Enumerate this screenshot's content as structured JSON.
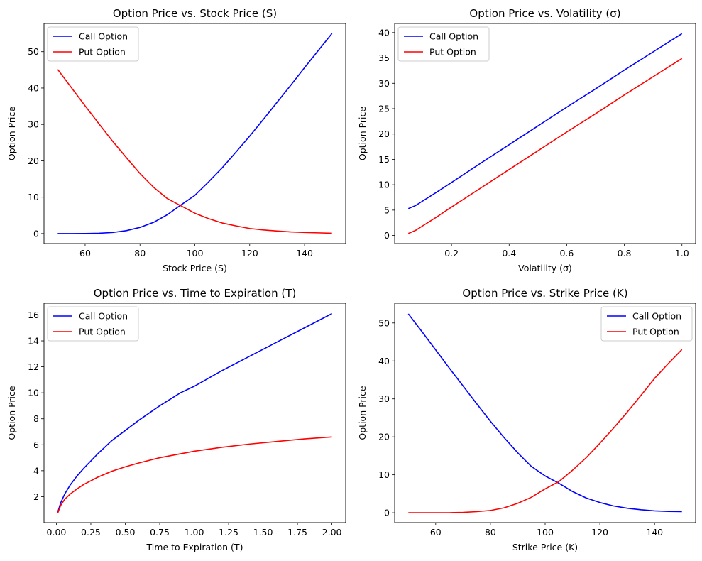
{
  "chart_data": [
    {
      "type": "line",
      "title": "Option Price vs. Stock Price (S)",
      "xlabel": "Stock Price (S)",
      "ylabel": "Option Price",
      "xlim": [
        45,
        155
      ],
      "ylim": [
        -2.75,
        57.75
      ],
      "xticks": [
        60,
        80,
        100,
        120,
        140
      ],
      "yticks": [
        0,
        10,
        20,
        30,
        40,
        50
      ],
      "legend_position": "top-left",
      "series": [
        {
          "name": "Call Option",
          "color": "#0000ff",
          "x": [
            50,
            55,
            60,
            65,
            70,
            75,
            80,
            85,
            90,
            95,
            100,
            105,
            110,
            115,
            120,
            125,
            130,
            135,
            140,
            145,
            150
          ],
          "y": [
            0.0,
            0.0,
            0.02,
            0.1,
            0.3,
            0.8,
            1.7,
            3.1,
            5.2,
            7.9,
            10.5,
            14.2,
            18.1,
            22.4,
            26.8,
            31.4,
            36.1,
            40.8,
            45.6,
            50.3,
            55.0
          ]
        },
        {
          "name": "Put Option",
          "color": "#ff0000",
          "x": [
            50,
            55,
            60,
            65,
            70,
            75,
            80,
            85,
            90,
            95,
            100,
            105,
            110,
            115,
            120,
            125,
            130,
            135,
            140,
            145,
            150
          ],
          "y": [
            45.1,
            40.1,
            35.1,
            30.2,
            25.4,
            20.9,
            16.5,
            12.7,
            9.6,
            7.6,
            5.6,
            4.1,
            2.9,
            2.1,
            1.4,
            1.0,
            0.7,
            0.45,
            0.3,
            0.2,
            0.1
          ]
        }
      ]
    },
    {
      "type": "line",
      "title": "Option Price vs. Volatility (σ)",
      "xlabel": "Volatility (σ)",
      "ylabel": "Option Price",
      "xlim": [
        0.0025,
        1.0475
      ],
      "ylim": [
        -1.6,
        41.8
      ],
      "xticks": [
        0.2,
        0.4,
        0.6,
        0.8,
        1.0
      ],
      "xtick_labels": [
        "0.2",
        "0.4",
        "0.6",
        "0.8",
        "1.0"
      ],
      "yticks": [
        0,
        5,
        10,
        15,
        20,
        25,
        30,
        35,
        40
      ],
      "legend_position": "top-left",
      "series": [
        {
          "name": "Call Option",
          "color": "#0000ff",
          "x": [
            0.05,
            0.075,
            0.1,
            0.15,
            0.2,
            0.3,
            0.4,
            0.5,
            0.6,
            0.7,
            0.8,
            0.9,
            1.0
          ],
          "y": [
            5.3,
            5.9,
            6.8,
            8.6,
            10.45,
            14.2,
            17.9,
            21.6,
            25.3,
            28.9,
            32.6,
            36.2,
            39.8
          ]
        },
        {
          "name": "Put Option",
          "color": "#ff0000",
          "x": [
            0.05,
            0.075,
            0.1,
            0.15,
            0.2,
            0.3,
            0.4,
            0.5,
            0.6,
            0.7,
            0.8,
            0.9,
            1.0
          ],
          "y": [
            0.4,
            1.0,
            1.9,
            3.7,
            5.6,
            9.3,
            13.0,
            16.7,
            20.4,
            24.0,
            27.7,
            31.3,
            34.9
          ]
        }
      ]
    },
    {
      "type": "line",
      "title": "Option Price vs. Time to Expiration (T)",
      "xlabel": "Time to Expiration (T)",
      "ylabel": "Option Price",
      "xlim": [
        -0.09,
        2.1
      ],
      "ylim": [
        0.0,
        16.9
      ],
      "xticks": [
        0.0,
        0.25,
        0.5,
        0.75,
        1.0,
        1.25,
        1.5,
        1.75,
        2.0
      ],
      "xtick_labels": [
        "0.00",
        "0.25",
        "0.50",
        "0.75",
        "1.00",
        "1.25",
        "1.50",
        "1.75",
        "2.00"
      ],
      "yticks": [
        2,
        4,
        6,
        8,
        10,
        12,
        14,
        16
      ],
      "legend_position": "top-left",
      "series": [
        {
          "name": "Call Option",
          "color": "#0000ff",
          "x": [
            0.01,
            0.03,
            0.06,
            0.1,
            0.15,
            0.2,
            0.3,
            0.4,
            0.5,
            0.6,
            0.75,
            0.9,
            1.0,
            1.2,
            1.4,
            1.6,
            1.8,
            2.0
          ],
          "y": [
            0.8,
            1.5,
            2.2,
            2.9,
            3.6,
            4.2,
            5.3,
            6.3,
            7.1,
            7.9,
            9.0,
            10.0,
            10.5,
            11.7,
            12.8,
            13.9,
            15.0,
            16.1
          ]
        },
        {
          "name": "Put Option",
          "color": "#ff0000",
          "x": [
            0.01,
            0.03,
            0.06,
            0.1,
            0.15,
            0.2,
            0.3,
            0.4,
            0.5,
            0.6,
            0.75,
            0.9,
            1.0,
            1.2,
            1.4,
            1.6,
            1.8,
            2.0
          ],
          "y": [
            0.75,
            1.3,
            1.8,
            2.2,
            2.6,
            2.95,
            3.5,
            3.95,
            4.3,
            4.6,
            5.0,
            5.3,
            5.5,
            5.8,
            6.05,
            6.25,
            6.45,
            6.6
          ]
        }
      ]
    },
    {
      "type": "line",
      "title": "Option Price vs. Strike Price (K)",
      "xlabel": "Strike Price (K)",
      "ylabel": "Option Price",
      "xlim": [
        45,
        155
      ],
      "ylim": [
        -2.6,
        55.2
      ],
      "xticks": [
        60,
        80,
        100,
        120,
        140
      ],
      "yticks": [
        0,
        10,
        20,
        30,
        40,
        50
      ],
      "legend_position": "top-right",
      "series": [
        {
          "name": "Call Option",
          "color": "#0000ff",
          "x": [
            50,
            55,
            60,
            65,
            70,
            75,
            80,
            85,
            90,
            95,
            100,
            105,
            110,
            115,
            120,
            125,
            130,
            135,
            140,
            145,
            150
          ],
          "y": [
            52.4,
            47.7,
            42.9,
            38.1,
            33.4,
            28.7,
            24.1,
            19.8,
            15.8,
            12.2,
            9.7,
            7.8,
            5.6,
            3.9,
            2.7,
            1.8,
            1.2,
            0.8,
            0.5,
            0.35,
            0.3
          ]
        },
        {
          "name": "Put Option",
          "color": "#ff0000",
          "x": [
            50,
            55,
            60,
            65,
            70,
            75,
            80,
            85,
            90,
            95,
            100,
            105,
            110,
            115,
            120,
            125,
            130,
            135,
            140,
            145,
            150
          ],
          "y": [
            0.0,
            0.0,
            0.0,
            0.02,
            0.1,
            0.3,
            0.6,
            1.3,
            2.5,
            4.1,
            6.3,
            8.2,
            11.2,
            14.5,
            18.3,
            22.3,
            26.5,
            30.9,
            35.4,
            39.3,
            43.0
          ]
        }
      ]
    }
  ]
}
